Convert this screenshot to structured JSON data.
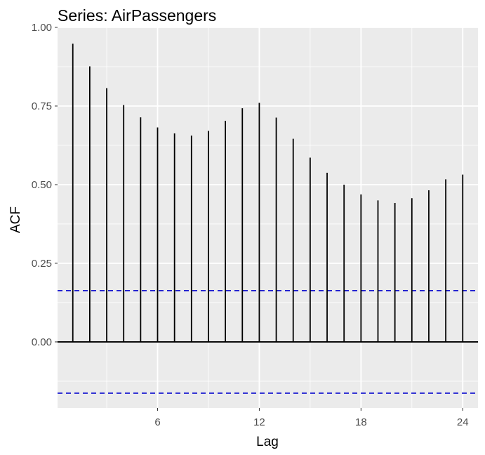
{
  "chart_data": {
    "type": "bar",
    "title": "Series: AirPassengers",
    "xlabel": "Lag",
    "ylabel": "ACF",
    "x": [
      1,
      2,
      3,
      4,
      5,
      6,
      7,
      8,
      9,
      10,
      11,
      12,
      13,
      14,
      15,
      16,
      17,
      18,
      19,
      20,
      21,
      22,
      23,
      24
    ],
    "values": [
      0.948,
      0.876,
      0.807,
      0.753,
      0.714,
      0.682,
      0.663,
      0.656,
      0.671,
      0.703,
      0.743,
      0.76,
      0.713,
      0.646,
      0.586,
      0.538,
      0.5,
      0.469,
      0.45,
      0.442,
      0.457,
      0.482,
      0.517,
      0.532
    ],
    "xlim": [
      0.1,
      24.9
    ],
    "ylim": [
      -0.21,
      1.0
    ],
    "x_ticks": [
      6,
      12,
      18,
      24
    ],
    "x_tick_labels": [
      "6",
      "12",
      "18",
      "24"
    ],
    "y_ticks": [
      0.0,
      0.25,
      0.5,
      0.75,
      1.0
    ],
    "y_tick_labels": [
      "0.00",
      "0.25",
      "0.50",
      "0.75",
      "1.00"
    ],
    "confidence_bound": 0.163,
    "grid": true,
    "legend": "none",
    "colors": {
      "panel": "#ebebeb",
      "grid": "#ffffff",
      "spike": "#000000",
      "bound": "#0000cc"
    }
  }
}
